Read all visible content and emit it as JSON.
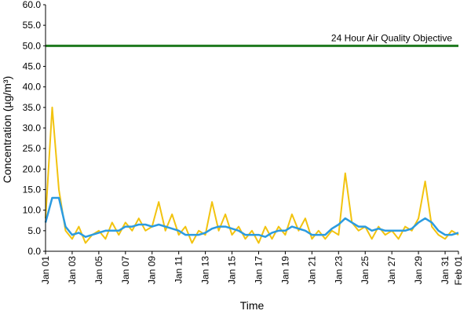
{
  "chart_data": {
    "type": "line",
    "x_label": "Time",
    "y_label": "Concentration (µg/m³)",
    "x": [
      0,
      0.5,
      1,
      1.5,
      2,
      2.5,
      3,
      3.5,
      4,
      4.5,
      5,
      5.5,
      6,
      6.5,
      7,
      7.5,
      8,
      8.5,
      9,
      9.5,
      10,
      10.5,
      11,
      11.5,
      12,
      12.5,
      13,
      13.5,
      14,
      14.5,
      15,
      15.5,
      16,
      16.5,
      17,
      17.5,
      18,
      18.5,
      19,
      19.5,
      20,
      20.5,
      21,
      21.5,
      22,
      22.5,
      23,
      23.5,
      24,
      24.5,
      25,
      25.5,
      26,
      26.5,
      27,
      27.5,
      28,
      28.5,
      29,
      29.5,
      30,
      30.5,
      31
    ],
    "series": [
      {
        "color": "#f2c30f",
        "values": [
          8,
          35,
          15,
          5,
          3,
          6,
          2,
          4,
          5,
          3,
          7,
          4,
          7,
          5,
          8,
          5,
          6,
          12,
          5,
          9,
          4,
          6,
          2,
          5,
          4,
          12,
          5,
          9,
          4,
          6,
          3,
          5,
          2,
          6,
          3,
          6,
          4,
          9,
          5,
          8,
          3,
          5,
          3,
          5,
          4,
          19,
          7,
          5,
          6,
          3,
          6,
          4,
          5,
          3,
          6,
          5,
          8,
          17,
          6,
          4,
          3,
          5,
          4
        ]
      },
      {
        "color": "#2b9be0",
        "values": [
          7,
          13,
          13,
          6,
          4,
          4.5,
          3.5,
          4,
          4.5,
          5,
          5,
          5,
          6,
          6,
          6.5,
          6.5,
          6,
          6.5,
          6,
          5.5,
          5,
          4,
          4,
          4,
          4.5,
          5.5,
          6,
          6,
          5.5,
          5,
          4,
          4,
          4,
          3.5,
          4.5,
          5,
          5,
          6,
          5.5,
          5,
          4,
          4,
          4,
          5.5,
          6.5,
          8,
          7,
          6,
          6,
          5,
          5.5,
          5,
          5,
          5,
          5,
          5.5,
          7,
          8,
          7,
          5,
          4,
          4,
          4.5
        ]
      }
    ],
    "hlines": [
      {
        "value": 50,
        "label": "24 Hour Air Quality Objective",
        "color": "#1f7a1f"
      }
    ],
    "xlim": [
      0,
      31
    ],
    "xticks": [
      {
        "value": 0,
        "label": "Jan 01"
      },
      {
        "value": 2,
        "label": "Jan 03"
      },
      {
        "value": 4,
        "label": "Jan 05"
      },
      {
        "value": 6,
        "label": "Jan 07"
      },
      {
        "value": 8,
        "label": "Jan 09"
      },
      {
        "value": 10,
        "label": "Jan 11"
      },
      {
        "value": 12,
        "label": "Jan 13"
      },
      {
        "value": 14,
        "label": "Jan 15"
      },
      {
        "value": 16,
        "label": "Jan 17"
      },
      {
        "value": 18,
        "label": "Jan 19"
      },
      {
        "value": 20,
        "label": "Jan 21"
      },
      {
        "value": 22,
        "label": "Jan 23"
      },
      {
        "value": 24,
        "label": "Jan 25"
      },
      {
        "value": 26,
        "label": "Jan 27"
      },
      {
        "value": 28,
        "label": "Jan 29"
      },
      {
        "value": 30,
        "label": "Jan 31"
      },
      {
        "value": 31,
        "label": "Feb 01"
      }
    ],
    "ylim": [
      0,
      60
    ],
    "yticks": [
      {
        "value": 0,
        "label": "0.0"
      },
      {
        "value": 5,
        "label": "5.0"
      },
      {
        "value": 10,
        "label": "10.0"
      },
      {
        "value": 15,
        "label": "15.0"
      },
      {
        "value": 20,
        "label": "20.0"
      },
      {
        "value": 25,
        "label": "25.0"
      },
      {
        "value": 30,
        "label": "30.0"
      },
      {
        "value": 35,
        "label": "35.0"
      },
      {
        "value": 40,
        "label": "40.0"
      },
      {
        "value": 45,
        "label": "45.0"
      },
      {
        "value": 50,
        "label": "50.0"
      },
      {
        "value": 55,
        "label": "55.0"
      },
      {
        "value": 60,
        "label": "60.0"
      }
    ]
  }
}
